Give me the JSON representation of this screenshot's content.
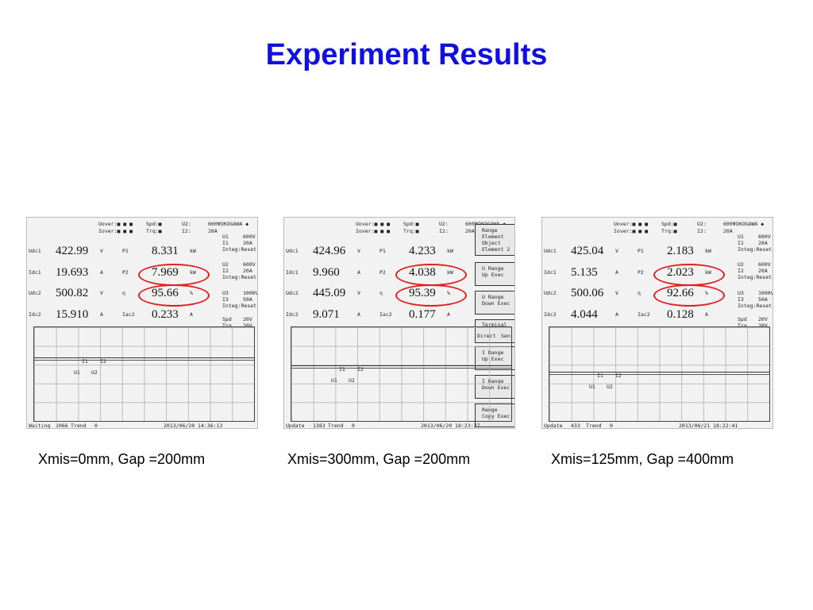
{
  "title": "Experiment Results",
  "panels": [
    {
      "header": [
        [
          "Uover:■ ■ ■",
          "Spd:■",
          "U2:",
          "600V",
          "YOKOGAWA ◆"
        ],
        [
          "Iover:■ ■ ■",
          "Trq:■",
          "I2:",
          "20A"
        ]
      ],
      "rows": [
        [
          "Udc1",
          "422.99",
          "V",
          "P1",
          "8.331",
          "kW"
        ],
        [
          "Idc1",
          "19.693",
          "A",
          "P2",
          "7.969",
          "kW"
        ],
        [
          "Udc2",
          "500.82",
          "V",
          "η",
          "95.66",
          "%"
        ],
        [
          "Idc2",
          "15.910",
          "A",
          "Iac2",
          "0.233",
          "A"
        ]
      ],
      "side": [
        [
          "U1",
          "600V"
        ],
        [
          "I1",
          "20A"
        ],
        [
          "Integ:Reset"
        ],
        [
          "U2",
          "600V"
        ],
        [
          "I2",
          "20A"
        ],
        [
          "Integ:Reset"
        ],
        [
          "U3",
          "1000V"
        ],
        [
          "I3",
          "50A"
        ],
        [
          "Integ:Reset"
        ],
        [
          "Spd",
          "20V"
        ],
        [
          "Trq",
          "20V"
        ]
      ],
      "trend_labels": [
        "I1",
        "I2",
        "U1",
        "U2"
      ],
      "footer": [
        "Waiting",
        "1066",
        "Trend",
        "0",
        "2013/06/20 14:36:13"
      ],
      "caption": "Xmis=0mm, Gap =200mm"
    },
    {
      "header": [
        [
          "Uover:■ ■ ■",
          "Spd:■",
          "U2:",
          "600V",
          "YOKOGAWA ◆"
        ],
        [
          "Iover:■ ■ ■",
          "Trq:■",
          "I2:",
          "20A"
        ]
      ],
      "rows": [
        [
          "Udc1",
          "424.96",
          "V",
          "P1",
          "4.233",
          "kW"
        ],
        [
          "Idc1",
          "9.960",
          "A",
          "P2",
          "4.038",
          "kW"
        ],
        [
          "Udc2",
          "445.09",
          "V",
          "η",
          "95.39",
          "%"
        ],
        [
          "Idc2",
          "9.071",
          "A",
          "Iac2",
          "0.177",
          "A"
        ]
      ],
      "menu": [
        [
          "Range",
          "Element",
          "Object",
          "Element 2"
        ],
        [
          "U Range",
          "Up Exec"
        ],
        [
          "U Range",
          "Down Exec"
        ],
        [
          "Terminal",
          "Direct",
          "Sen"
        ],
        [
          "I Range",
          "Up Exec"
        ],
        [
          "I Range",
          "Down Exec"
        ],
        [
          "Range",
          "Copy Exec"
        ]
      ],
      "trend_labels": [
        "I1",
        "I2",
        "U1",
        "U2"
      ],
      "footer": [
        "Update",
        "1383",
        "Trend",
        "0",
        "2013/06/20 18:23:27"
      ],
      "caption": "Xmis=300mm, Gap =200mm"
    },
    {
      "header": [
        [
          "Uover:■ ■ ■",
          "Spd:■",
          "U2:",
          "600V",
          "YOKOGAWA ◆"
        ],
        [
          "Iover:■ ■ ■",
          "Trq:■",
          "I2:",
          "20A"
        ]
      ],
      "rows": [
        [
          "Udc1",
          "425.04",
          "V",
          "P1",
          "2.183",
          "kW"
        ],
        [
          "Idc1",
          "5.135",
          "A",
          "P2",
          "2.023",
          "kW"
        ],
        [
          "Udc2",
          "500.06",
          "V",
          "η",
          "92.66",
          "%"
        ],
        [
          "Idc2",
          "4.044",
          "A",
          "Iac2",
          "0.128",
          "A"
        ]
      ],
      "side": [
        [
          "U1",
          "600V"
        ],
        [
          "I1",
          "20A"
        ],
        [
          "Integ:Reset"
        ],
        [
          "U2",
          "600V"
        ],
        [
          "I2",
          "20A"
        ],
        [
          "Integ:Reset"
        ],
        [
          "U3",
          "1000V"
        ],
        [
          "I3",
          "50A"
        ],
        [
          "Integ:Reset"
        ],
        [
          "Spd",
          "20V"
        ],
        [
          "Trq",
          "20V"
        ]
      ],
      "trend_labels": [
        "I1",
        "I2",
        "U1",
        "U2"
      ],
      "footer": [
        "Update",
        "433",
        "Trend",
        "0",
        "2013/06/21 18:22:41"
      ],
      "caption": "Xmis=125mm, Gap =400mm"
    }
  ]
}
